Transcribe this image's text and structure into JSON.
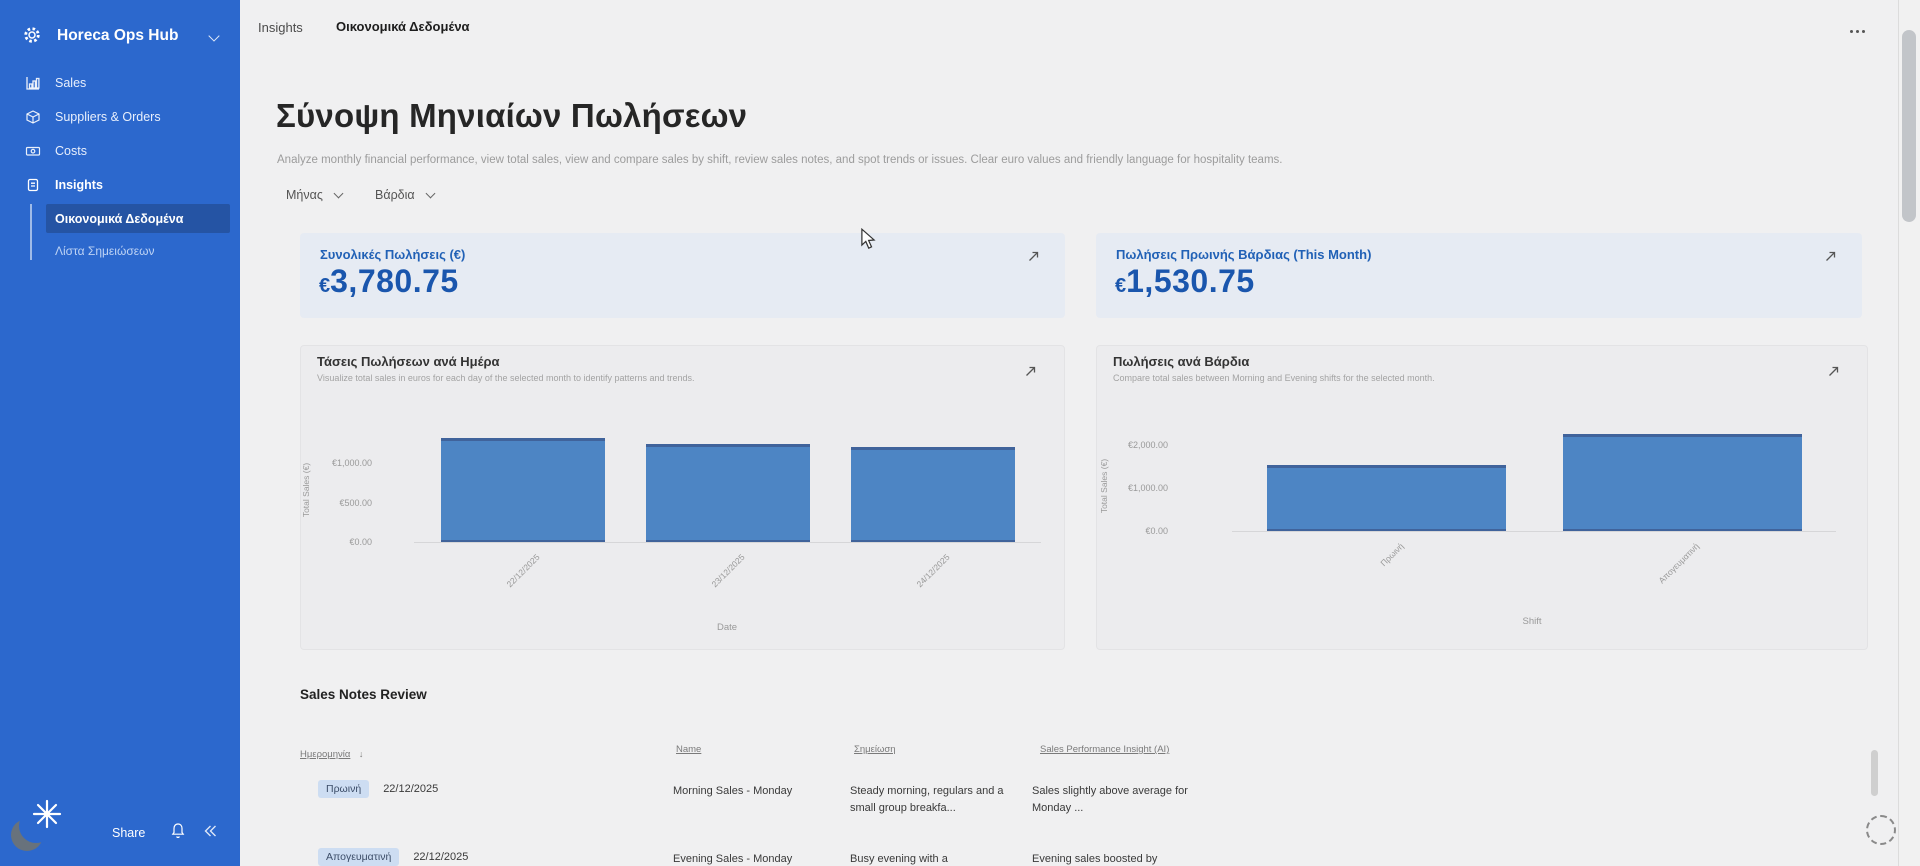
{
  "app": {
    "name": "Horeca Ops Hub"
  },
  "sidebar": {
    "items": [
      {
        "label": "Sales"
      },
      {
        "label": "Suppliers & Orders"
      },
      {
        "label": "Costs"
      },
      {
        "label": "Insights"
      }
    ],
    "sub_items": [
      {
        "label": "Οικονομικά Δεδομένα",
        "active": true
      },
      {
        "label": "Λίστα Σημειώσεων",
        "active": false
      }
    ],
    "share_label": "Share"
  },
  "topbar": {
    "tabs": [
      {
        "label": "Insights"
      },
      {
        "label": "Οικονομικά Δεδομένα"
      }
    ]
  },
  "page": {
    "title": "Σύνοψη Μηνιαίων Πωλήσεων",
    "subtitle": "Analyze monthly financial performance, view total sales, view and compare sales by shift, review sales notes, and spot trends or issues. Clear euro values and friendly language for hospitality teams.",
    "filters": [
      {
        "label": "Μήνας"
      },
      {
        "label": "Βάρδια"
      }
    ]
  },
  "kpis": [
    {
      "title": "Συνολικές Πωλήσεις (€)",
      "currency": "€",
      "value": "3,780.75"
    },
    {
      "title": "Πωλήσεις Πρωινής Βάρδιας (This Month)",
      "currency": "€",
      "value": "1,530.75"
    }
  ],
  "chart_data": [
    {
      "type": "bar",
      "title": "Τάσεις Πωλήσεων ανά Ημέρα",
      "subtitle": "Visualize total sales in euros for each day of the selected month to identify patterns and trends.",
      "categories": [
        "22/12/2025",
        "23/12/2025",
        "24/12/2025"
      ],
      "values": [
        1320.25,
        1245.25,
        1215.25
      ],
      "xlabel": "Date",
      "ylabel": "Total Sales (€)",
      "yticks": [
        "€1,000.00",
        "€500.00",
        "€0.00"
      ],
      "ytick_values": [
        1000,
        500,
        0
      ],
      "ylim": [
        0,
        1400
      ],
      "legend": "none",
      "grid": false
    },
    {
      "type": "bar",
      "title": "Πωλήσεις ανά Βάρδια",
      "subtitle": "Compare total sales between Morning and Evening shifts for the selected month.",
      "categories": [
        "Πρωινή",
        "Απογευματινή"
      ],
      "values": [
        1530.75,
        2250.0
      ],
      "xlabel": "Shift",
      "ylabel": "Total Sales (€)",
      "yticks": [
        "€2,000.00",
        "€1,000.00",
        "€0.00"
      ],
      "ytick_values": [
        2000,
        1000,
        0
      ],
      "ylim": [
        0,
        2300
      ],
      "legend": "none",
      "grid": false
    }
  ],
  "notes": {
    "section_title": "Sales Notes Review",
    "columns": {
      "date": "Ημερομηνία",
      "name": "Name",
      "note": "Σημείωση",
      "insight": "Sales Performance Insight (AI)"
    },
    "sort_indicator": "↓",
    "rows": [
      {
        "badge": "Πρωινή",
        "date": "22/12/2025",
        "name": "Morning Sales - Monday",
        "note": "Steady morning, regulars and a small group breakfa...",
        "insight": "Sales slightly above average for Monday ..."
      },
      {
        "badge": "Απογευματινή",
        "date": "22/12/2025",
        "name": "Evening Sales - Monday",
        "note": "Busy evening with a",
        "insight": "Evening sales boosted by"
      }
    ]
  },
  "colors": {
    "sidebar": "#2c68cd",
    "bar": "#4d85c4",
    "kpi_bg": "#e6ebf3",
    "kpi_text": "#1a56ad"
  }
}
